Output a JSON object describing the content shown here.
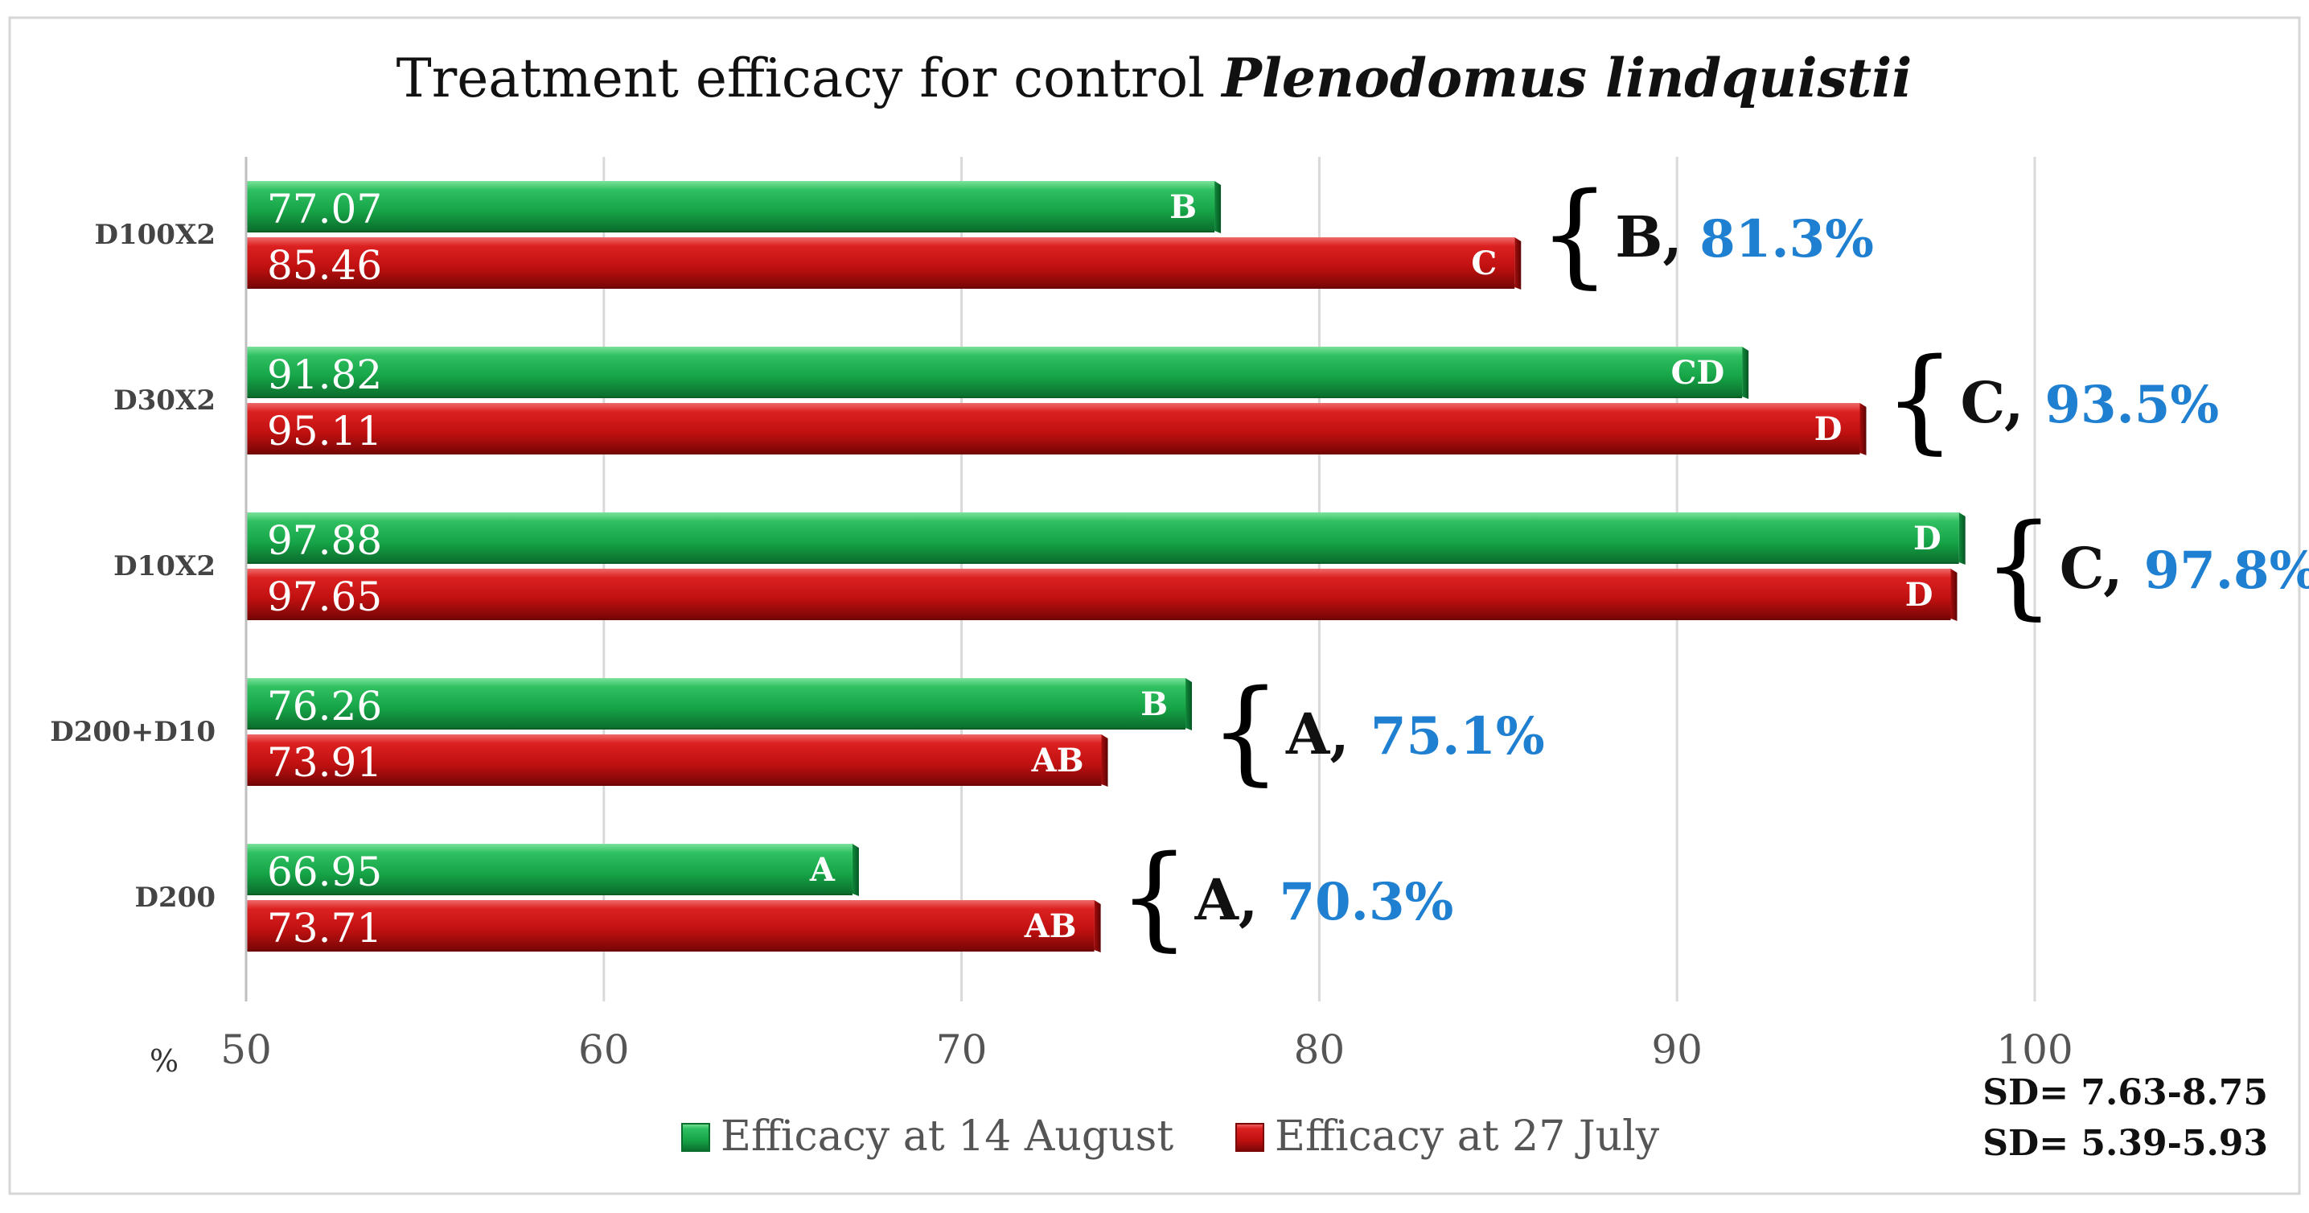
{
  "chart_data": {
    "type": "bar",
    "orientation": "horizontal",
    "title": "Treatment efficacy for control ",
    "title_species": "Plenodomus lindquistii",
    "xlabel": "%",
    "xlim": [
      50,
      100
    ],
    "xticks": [
      "50",
      "60",
      "70",
      "80",
      "90",
      "100"
    ],
    "grid": true,
    "legend_position": "bottom",
    "categories": [
      "D100X2",
      "D30X2",
      "D10X2",
      "D200+D10",
      "D200"
    ],
    "series": [
      {
        "name": "Efficacy at 14 August",
        "color": "#1fae4f",
        "values": [
          77.07,
          91.82,
          97.88,
          76.26,
          66.95
        ],
        "value_labels": [
          "77.07",
          "91.82",
          "97.88",
          "76.26",
          "66.95"
        ],
        "letters": [
          "B",
          "CD",
          "D",
          "B",
          "A"
        ]
      },
      {
        "name": "Efficacy at 27 July",
        "color": "#d01010",
        "values": [
          85.46,
          95.11,
          97.65,
          73.91,
          73.71
        ],
        "value_labels": [
          "85.46",
          "95.11",
          "97.65",
          "73.91",
          "73.71"
        ],
        "letters": [
          "C",
          "D",
          "D",
          "AB",
          "AB"
        ]
      }
    ],
    "annotations": [
      {
        "group": "B,",
        "percent": "81.3%"
      },
      {
        "group": "C,",
        "percent": "93.5%"
      },
      {
        "group": "C,",
        "percent": "97.8%"
      },
      {
        "group": "A,",
        "percent": "75.1%"
      },
      {
        "group": "A,",
        "percent": "70.3%"
      }
    ],
    "sd_notes": [
      "SD= 7.63-8.75",
      "SD= 5.39-5.93"
    ]
  }
}
